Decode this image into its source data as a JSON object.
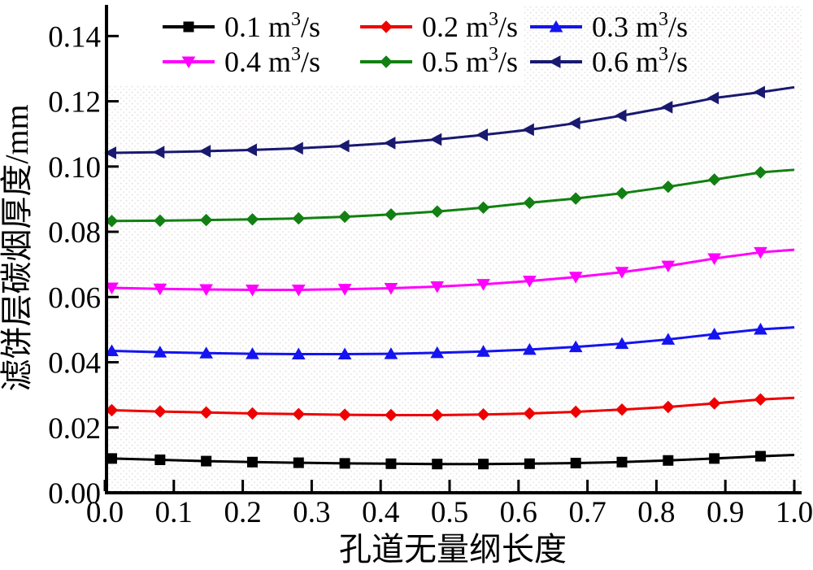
{
  "chart_data": {
    "type": "line",
    "title": "",
    "xlabel": "孔道无量纲长度",
    "ylabel": "滤饼层碳烟厚度/mm",
    "xlim": [
      0.0,
      1.0
    ],
    "ylim": [
      0.0,
      0.14
    ],
    "grid": false,
    "plot_background": "light dotted texture",
    "texture_color": "#e7e2e3",
    "axis_color": "#000000",
    "x_tick_labels": [
      "0.0",
      "0.1",
      "0.2",
      "0.3",
      "0.4",
      "0.5",
      "0.6",
      "0.7",
      "0.8",
      "0.9",
      "1.0"
    ],
    "x_tick_values": [
      0.0,
      0.1,
      0.2,
      0.3,
      0.4,
      0.5,
      0.6,
      0.7,
      0.8,
      0.9,
      1.0
    ],
    "y_tick_labels": [
      "0.00",
      "0.02",
      "0.04",
      "0.06",
      "0.08",
      "0.10",
      "0.12",
      "0.14"
    ],
    "y_tick_values": [
      0.0,
      0.02,
      0.04,
      0.06,
      0.08,
      0.1,
      0.12,
      0.14
    ],
    "legend": {
      "position": "top",
      "rows": 2,
      "columns": 3,
      "unit": {
        "base": " m",
        "sup": "3",
        "suffix": "/s"
      }
    },
    "x": [
      0.01,
      0.08,
      0.147,
      0.214,
      0.281,
      0.348,
      0.415,
      0.482,
      0.549,
      0.616,
      0.683,
      0.75,
      0.817,
      0.884,
      0.951,
      1.0
    ],
    "series": [
      {
        "name": "0.1 m³/s",
        "flow": "0.1",
        "color": "#000000",
        "marker": "square",
        "values": [
          0.0105,
          0.0101,
          0.0097,
          0.0094,
          0.0092,
          0.009,
          0.0089,
          0.0088,
          0.0088,
          0.0089,
          0.0091,
          0.0094,
          0.0099,
          0.0105,
          0.0112,
          0.0116
        ]
      },
      {
        "name": "0.2 m³/s",
        "flow": "0.2",
        "color": "#ee0000",
        "marker": "diamond",
        "values": [
          0.0253,
          0.0249,
          0.0246,
          0.0243,
          0.0241,
          0.0239,
          0.0238,
          0.0238,
          0.024,
          0.0243,
          0.0248,
          0.0255,
          0.0263,
          0.0274,
          0.0286,
          0.0291
        ]
      },
      {
        "name": "0.3 m³/s",
        "flow": "0.3",
        "color": "#1414f0",
        "marker": "triangle-up",
        "values": [
          0.0435,
          0.0431,
          0.0428,
          0.0426,
          0.0425,
          0.0425,
          0.0426,
          0.0429,
          0.0433,
          0.0439,
          0.0447,
          0.0457,
          0.047,
          0.0486,
          0.0501,
          0.0507
        ]
      },
      {
        "name": "0.4 m³/s",
        "flow": "0.4",
        "color": "#ff00ff",
        "marker": "triangle-down",
        "values": [
          0.0628,
          0.0625,
          0.0623,
          0.0622,
          0.0622,
          0.0624,
          0.0627,
          0.0632,
          0.0639,
          0.0649,
          0.0661,
          0.0676,
          0.0695,
          0.0718,
          0.0737,
          0.0745
        ]
      },
      {
        "name": "0.5 m³/s",
        "flow": "0.5",
        "color": "#128012",
        "marker": "diamond",
        "values": [
          0.0833,
          0.0834,
          0.0836,
          0.0838,
          0.0841,
          0.0846,
          0.0853,
          0.0862,
          0.0874,
          0.0889,
          0.0902,
          0.0918,
          0.0938,
          0.096,
          0.0982,
          0.099
        ]
      },
      {
        "name": "0.6 m³/s",
        "flow": "0.6",
        "color": "#191970",
        "marker": "triangle-left",
        "values": [
          0.1042,
          0.1044,
          0.1047,
          0.1051,
          0.1056,
          0.1063,
          0.1072,
          0.1083,
          0.1097,
          0.1113,
          0.1133,
          0.1156,
          0.1182,
          0.121,
          0.1228,
          0.1243
        ]
      }
    ]
  }
}
